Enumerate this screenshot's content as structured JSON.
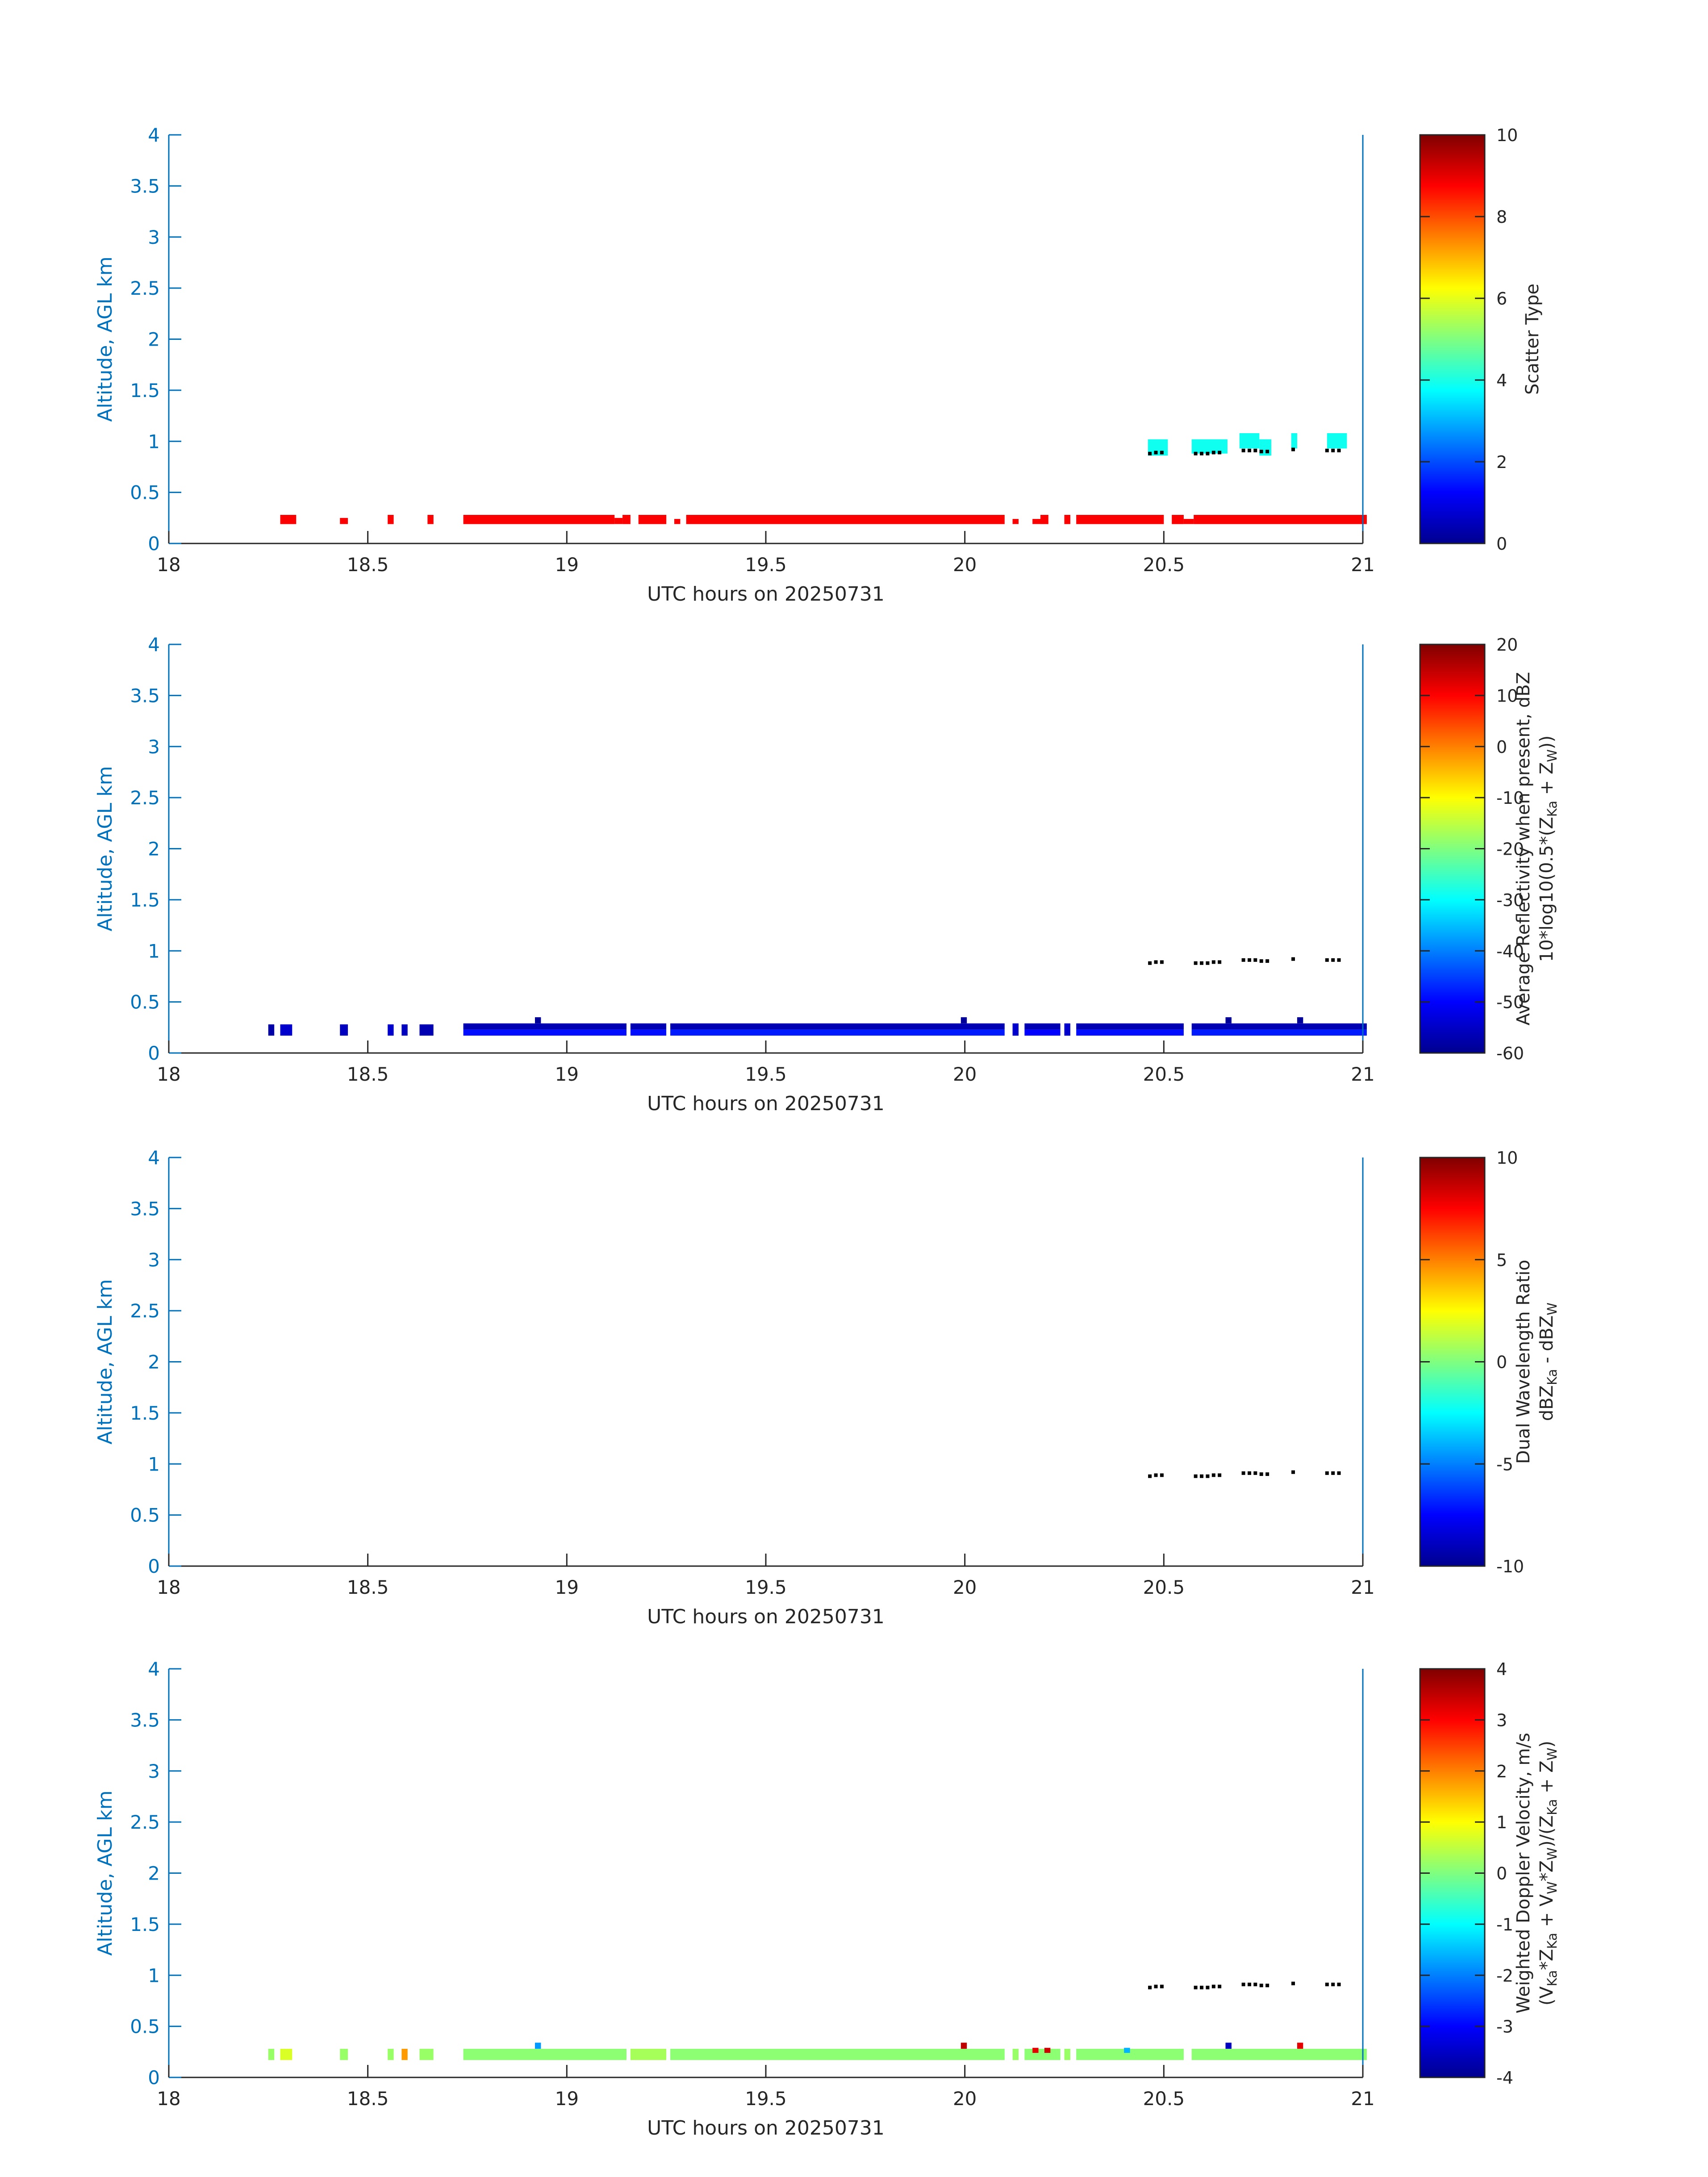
{
  "chart_data": [
    {
      "type": "heatmap",
      "panel": "scatter-type",
      "xlabel": "UTC hours on 20250731",
      "ylabel": "Altitude, AGL km",
      "xlim": [
        18,
        21
      ],
      "ylim": [
        0,
        4
      ],
      "x_ticks": [
        "18",
        "18.5",
        "19",
        "19.5",
        "20",
        "20.5",
        "21"
      ],
      "y_ticks": [
        "0",
        "0.5",
        "1",
        "1.5",
        "2",
        "2.5",
        "3",
        "3.5",
        "4"
      ],
      "colorbar": {
        "label_lines": [
          "Scatter Type"
        ],
        "range": [
          0,
          10
        ],
        "ticks": [
          "0",
          "2",
          "4",
          "6",
          "8",
          "10"
        ]
      },
      "bands": [
        {
          "x0": 18.28,
          "x1": 18.32,
          "y0": 0.19,
          "y1": 0.28,
          "value": 8.8
        },
        {
          "x0": 18.43,
          "x1": 18.45,
          "y0": 0.19,
          "y1": 0.25,
          "value": 8.8
        },
        {
          "x0": 18.55,
          "x1": 18.565,
          "y0": 0.19,
          "y1": 0.28,
          "value": 8.8
        },
        {
          "x0": 18.65,
          "x1": 18.665,
          "y0": 0.19,
          "y1": 0.28,
          "value": 8.8
        },
        {
          "x0": 18.74,
          "x1": 19.12,
          "y0": 0.19,
          "y1": 0.28,
          "value": 8.8
        },
        {
          "x0": 19.12,
          "x1": 19.14,
          "y0": 0.19,
          "y1": 0.25,
          "value": 8.8
        },
        {
          "x0": 19.14,
          "x1": 19.16,
          "y0": 0.19,
          "y1": 0.28,
          "value": 8.8
        },
        {
          "x0": 19.18,
          "x1": 19.25,
          "y0": 0.19,
          "y1": 0.28,
          "value": 8.8
        },
        {
          "x0": 19.27,
          "x1": 19.285,
          "y0": 0.19,
          "y1": 0.24,
          "value": 8.8
        },
        {
          "x0": 19.3,
          "x1": 20.1,
          "y0": 0.19,
          "y1": 0.28,
          "value": 8.8
        },
        {
          "x0": 20.12,
          "x1": 20.135,
          "y0": 0.19,
          "y1": 0.24,
          "value": 8.8
        },
        {
          "x0": 20.17,
          "x1": 20.2,
          "y0": 0.19,
          "y1": 0.24,
          "value": 8.8
        },
        {
          "x0": 20.19,
          "x1": 20.21,
          "y0": 0.19,
          "y1": 0.28,
          "value": 8.8
        },
        {
          "x0": 20.25,
          "x1": 20.265,
          "y0": 0.19,
          "y1": 0.28,
          "value": 8.8
        },
        {
          "x0": 20.28,
          "x1": 20.5,
          "y0": 0.19,
          "y1": 0.28,
          "value": 8.8
        },
        {
          "x0": 20.52,
          "x1": 20.55,
          "y0": 0.19,
          "y1": 0.28,
          "value": 8.8
        },
        {
          "x0": 20.55,
          "x1": 20.575,
          "y0": 0.19,
          "y1": 0.24,
          "value": 8.8
        },
        {
          "x0": 20.575,
          "x1": 21.01,
          "y0": 0.19,
          "y1": 0.28,
          "value": 8.8
        },
        {
          "x0": 20.46,
          "x1": 20.51,
          "y0": 0.86,
          "y1": 1.02,
          "value": 3.9
        },
        {
          "x0": 20.57,
          "x1": 20.66,
          "y0": 0.88,
          "y1": 1.02,
          "value": 3.9
        },
        {
          "x0": 20.69,
          "x1": 20.74,
          "y0": 0.93,
          "y1": 1.08,
          "value": 3.9
        },
        {
          "x0": 20.74,
          "x1": 20.77,
          "y0": 0.86,
          "y1": 1.02,
          "value": 3.9
        },
        {
          "x0": 20.82,
          "x1": 20.835,
          "y0": 0.93,
          "y1": 1.08,
          "value": 3.9
        },
        {
          "x0": 20.91,
          "x1": 20.96,
          "y0": 0.93,
          "y1": 1.08,
          "value": 3.9
        }
      ]
    },
    {
      "type": "heatmap",
      "panel": "reflectivity",
      "xlabel": "UTC hours on 20250731",
      "ylabel": "Altitude, AGL km",
      "xlim": [
        18,
        21
      ],
      "ylim": [
        0,
        4
      ],
      "x_ticks": [
        "18",
        "18.5",
        "19",
        "19.5",
        "20",
        "20.5",
        "21"
      ],
      "y_ticks": [
        "0",
        "0.5",
        "1",
        "1.5",
        "2",
        "2.5",
        "3",
        "3.5",
        "4"
      ],
      "colorbar": {
        "label_lines": [
          "Average Reflectivity when present, dBZ",
          "10*log10(0.5*(Z_Ka + Z_W))"
        ],
        "range": [
          -60,
          20
        ],
        "ticks": [
          "-60",
          "-50",
          "-40",
          "-30",
          "-20",
          "-10",
          "0",
          "10",
          "20"
        ]
      },
      "bands": [
        {
          "x0": 18.25,
          "x1": 18.265,
          "y0": 0.17,
          "y1": 0.28,
          "value": -57
        },
        {
          "x0": 18.28,
          "x1": 18.31,
          "y0": 0.17,
          "y1": 0.28,
          "value": -54
        },
        {
          "x0": 18.43,
          "x1": 18.45,
          "y0": 0.17,
          "y1": 0.28,
          "value": -55
        },
        {
          "x0": 18.55,
          "x1": 18.565,
          "y0": 0.17,
          "y1": 0.28,
          "value": -54
        },
        {
          "x0": 18.585,
          "x1": 18.6,
          "y0": 0.17,
          "y1": 0.28,
          "value": -55
        },
        {
          "x0": 18.63,
          "x1": 18.665,
          "y0": 0.17,
          "y1": 0.28,
          "value": -56
        },
        {
          "x0": 18.74,
          "x1": 19.15,
          "y0": 0.23,
          "y1": 0.29,
          "value": -56
        },
        {
          "x0": 18.74,
          "x1": 19.15,
          "y0": 0.17,
          "y1": 0.23,
          "value": -49
        },
        {
          "x0": 19.16,
          "x1": 19.25,
          "y0": 0.23,
          "y1": 0.29,
          "value": -56
        },
        {
          "x0": 19.16,
          "x1": 19.25,
          "y0": 0.17,
          "y1": 0.23,
          "value": -49
        },
        {
          "x0": 19.26,
          "x1": 20.1,
          "y0": 0.23,
          "y1": 0.29,
          "value": -56
        },
        {
          "x0": 19.26,
          "x1": 20.1,
          "y0": 0.17,
          "y1": 0.23,
          "value": -48
        },
        {
          "x0": 20.12,
          "x1": 20.135,
          "y0": 0.17,
          "y1": 0.29,
          "value": -54
        },
        {
          "x0": 20.15,
          "x1": 20.24,
          "y0": 0.23,
          "y1": 0.29,
          "value": -56
        },
        {
          "x0": 20.15,
          "x1": 20.24,
          "y0": 0.17,
          "y1": 0.23,
          "value": -50
        },
        {
          "x0": 20.25,
          "x1": 20.265,
          "y0": 0.17,
          "y1": 0.29,
          "value": -54
        },
        {
          "x0": 20.28,
          "x1": 20.55,
          "y0": 0.23,
          "y1": 0.29,
          "value": -56
        },
        {
          "x0": 20.28,
          "x1": 20.55,
          "y0": 0.17,
          "y1": 0.23,
          "value": -49
        },
        {
          "x0": 20.57,
          "x1": 21.01,
          "y0": 0.23,
          "y1": 0.29,
          "value": -56
        },
        {
          "x0": 20.57,
          "x1": 21.01,
          "y0": 0.17,
          "y1": 0.23,
          "value": -48
        },
        {
          "x0": 18.92,
          "x1": 18.935,
          "y0": 0.29,
          "y1": 0.35,
          "value": -58
        },
        {
          "x0": 19.99,
          "x1": 20.005,
          "y0": 0.29,
          "y1": 0.35,
          "value": -58
        },
        {
          "x0": 20.655,
          "x1": 20.67,
          "y0": 0.29,
          "y1": 0.35,
          "value": -58
        },
        {
          "x0": 20.835,
          "x1": 20.85,
          "y0": 0.29,
          "y1": 0.35,
          "value": -58
        }
      ]
    },
    {
      "type": "heatmap",
      "panel": "dual-wavelength-ratio",
      "xlabel": "UTC hours on 20250731",
      "ylabel": "Altitude, AGL km",
      "xlim": [
        18,
        21
      ],
      "ylim": [
        0,
        4
      ],
      "x_ticks": [
        "18",
        "18.5",
        "19",
        "19.5",
        "20",
        "20.5",
        "21"
      ],
      "y_ticks": [
        "0",
        "0.5",
        "1",
        "1.5",
        "2",
        "2.5",
        "3",
        "3.5",
        "4"
      ],
      "colorbar": {
        "label_lines": [
          "Dual Wavelength Ratio",
          "dBZ_Ka - dBZ_W"
        ],
        "range": [
          -10,
          10
        ],
        "ticks": [
          "-10",
          "-5",
          "0",
          "5",
          "10"
        ]
      },
      "bands": []
    },
    {
      "type": "heatmap",
      "panel": "doppler-velocity",
      "xlabel": "UTC hours on 20250731",
      "ylabel": "Altitude, AGL km",
      "xlim": [
        18,
        21
      ],
      "ylim": [
        0,
        4
      ],
      "x_ticks": [
        "18",
        "18.5",
        "19",
        "19.5",
        "20",
        "20.5",
        "21"
      ],
      "y_ticks": [
        "0",
        "0.5",
        "1",
        "1.5",
        "2",
        "2.5",
        "3",
        "3.5",
        "4"
      ],
      "colorbar": {
        "label_lines": [
          "Weighted Doppler Velocity, m/s",
          "(V_Ka*Z_Ka + V_W*Z_W)/(Z_Ka + Z_W)"
        ],
        "range": [
          -4,
          4
        ],
        "ticks": [
          "-4",
          "-3",
          "-2",
          "-1",
          "0",
          "1",
          "2",
          "3",
          "4"
        ]
      },
      "bands": [
        {
          "x0": 18.25,
          "x1": 18.265,
          "y0": 0.17,
          "y1": 0.28,
          "value": 0.2
        },
        {
          "x0": 18.28,
          "x1": 18.31,
          "y0": 0.17,
          "y1": 0.28,
          "value": 0.7
        },
        {
          "x0": 18.43,
          "x1": 18.45,
          "y0": 0.17,
          "y1": 0.28,
          "value": 0.2
        },
        {
          "x0": 18.55,
          "x1": 18.565,
          "y0": 0.17,
          "y1": 0.28,
          "value": 0.2
        },
        {
          "x0": 18.585,
          "x1": 18.6,
          "y0": 0.17,
          "y1": 0.28,
          "value": 1.8
        },
        {
          "x0": 18.63,
          "x1": 18.665,
          "y0": 0.17,
          "y1": 0.28,
          "value": 0.2
        },
        {
          "x0": 18.74,
          "x1": 19.15,
          "y0": 0.17,
          "y1": 0.28,
          "value": 0.1
        },
        {
          "x0": 19.16,
          "x1": 19.25,
          "y0": 0.17,
          "y1": 0.28,
          "value": 0.3
        },
        {
          "x0": 19.26,
          "x1": 20.1,
          "y0": 0.17,
          "y1": 0.28,
          "value": 0.1
        },
        {
          "x0": 20.12,
          "x1": 20.135,
          "y0": 0.17,
          "y1": 0.28,
          "value": 0.2
        },
        {
          "x0": 20.15,
          "x1": 20.24,
          "y0": 0.17,
          "y1": 0.28,
          "value": 0.1
        },
        {
          "x0": 20.25,
          "x1": 20.265,
          "y0": 0.17,
          "y1": 0.28,
          "value": 0.2
        },
        {
          "x0": 20.28,
          "x1": 20.55,
          "y0": 0.17,
          "y1": 0.28,
          "value": 0.1
        },
        {
          "x0": 20.57,
          "x1": 21.01,
          "y0": 0.17,
          "y1": 0.28,
          "value": 0.1
        },
        {
          "x0": 18.92,
          "x1": 18.935,
          "y0": 0.28,
          "y1": 0.34,
          "value": -1.8
        },
        {
          "x0": 19.99,
          "x1": 20.005,
          "y0": 0.28,
          "y1": 0.34,
          "value": 3.5
        },
        {
          "x0": 20.17,
          "x1": 20.185,
          "y0": 0.24,
          "y1": 0.29,
          "value": 3.2
        },
        {
          "x0": 20.2,
          "x1": 20.215,
          "y0": 0.24,
          "y1": 0.29,
          "value": 3.4
        },
        {
          "x0": 20.655,
          "x1": 20.67,
          "y0": 0.28,
          "y1": 0.34,
          "value": -3.5
        },
        {
          "x0": 20.835,
          "x1": 20.85,
          "y0": 0.28,
          "y1": 0.34,
          "value": 3.2
        },
        {
          "x0": 20.4,
          "x1": 20.415,
          "y0": 0.24,
          "y1": 0.29,
          "value": -1.6
        }
      ]
    }
  ],
  "cloud_base_points": {
    "x": [
      20.465,
      20.48,
      20.495,
      20.58,
      20.595,
      20.61,
      20.625,
      20.64,
      20.7,
      20.715,
      20.73,
      20.745,
      20.76,
      20.825,
      20.91,
      20.925,
      20.94
    ],
    "y": [
      0.88,
      0.89,
      0.89,
      0.88,
      0.88,
      0.88,
      0.89,
      0.89,
      0.91,
      0.91,
      0.91,
      0.9,
      0.9,
      0.92,
      0.91,
      0.91,
      0.91
    ]
  },
  "colors": {
    "axis_blue": "#0072bd",
    "text_dark": "#262626"
  }
}
